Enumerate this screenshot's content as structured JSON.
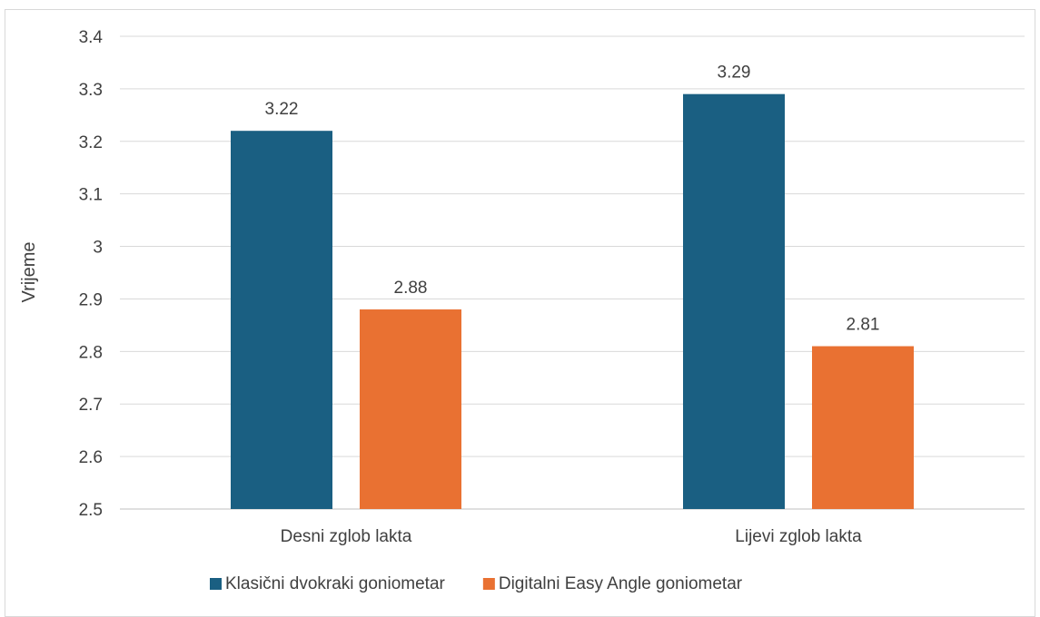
{
  "chart_data": {
    "type": "bar",
    "title": "",
    "xlabel": "",
    "ylabel": "Vrijeme",
    "ylim": [
      2.5,
      3.4
    ],
    "yticks": [
      "2.5",
      "2.6",
      "2.7",
      "2.8",
      "2.9",
      "3",
      "3.1",
      "3.2",
      "3.3",
      "3.4"
    ],
    "categories": [
      "Desni zglob lakta",
      "Lijevi zglob lakta"
    ],
    "series": [
      {
        "name": "Klasični dvokraki goniometar",
        "color": "#1a5f82",
        "values": [
          3.22,
          3.29
        ],
        "labels": [
          "3.22",
          "3.29"
        ]
      },
      {
        "name": "Digitalni Easy Angle goniometar",
        "color": "#e97132",
        "values": [
          2.88,
          2.81
        ],
        "labels": [
          "2.88",
          "2.81"
        ]
      }
    ],
    "grid": true,
    "legend_position": "bottom"
  }
}
